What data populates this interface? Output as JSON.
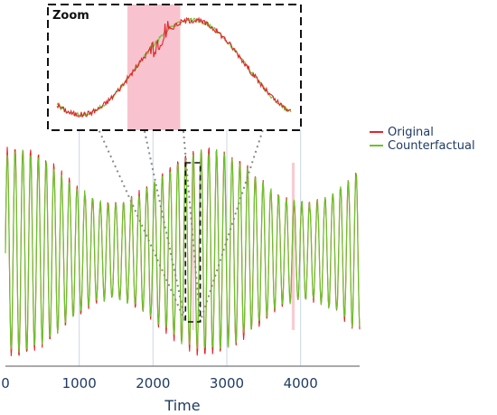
{
  "chart_data": {
    "type": "line",
    "xlabel": "Time",
    "ylabel": "",
    "xlim": [
      0,
      4800
    ],
    "ylim": [
      -1.45,
      1.45
    ],
    "x_ticks": [
      0,
      1000,
      2000,
      3000,
      4000
    ],
    "x_tick_labels": [
      "0",
      "1000",
      "2000",
      "3000",
      "4000"
    ],
    "grid": "vertical lines at x ticks",
    "legend": {
      "position": "top-right",
      "entries": [
        "Original",
        "Counterfactual"
      ]
    },
    "series": [
      {
        "name": "Original",
        "color": "#e0262e",
        "period": 105,
        "envelope_min": 0.6,
        "envelope_max": 1.3,
        "envelope_period": 2600,
        "envelope_phase_x": 2750
      },
      {
        "name": "Counterfactual",
        "color": "#6cc22b",
        "period": 105,
        "envelope_min": 0.6,
        "envelope_max": 1.25,
        "envelope_period": 2600,
        "envelope_phase_x": 2750
      }
    ],
    "highlight_regions": [
      {
        "x_start": 2530,
        "x_end": 2555,
        "color": "#f4b6c2"
      },
      {
        "x_start": 3880,
        "x_end": 3920,
        "color": "#f4b6c2"
      }
    ],
    "zoom": {
      "title": "Zoom",
      "x_range": [
        2440,
        2640
      ],
      "y_range": [
        -1.1,
        1.1
      ],
      "highlight": {
        "x_start": 2500,
        "x_end": 2545
      }
    }
  }
}
